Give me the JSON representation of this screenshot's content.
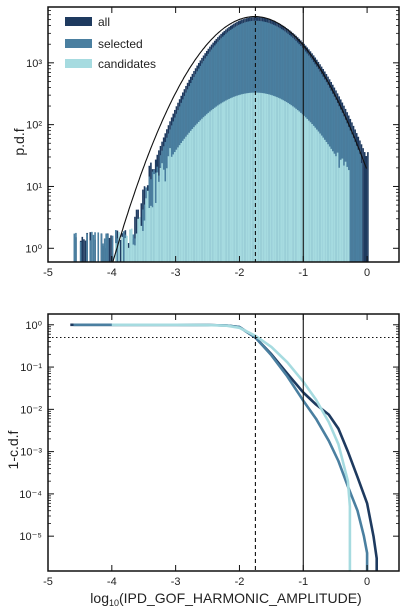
{
  "colors": {
    "all": "#1e3a5f",
    "selected": "#4a7fa0",
    "candidates": "#a6dbe0",
    "fit": "#111111",
    "frame": "#111111"
  },
  "chart_data": [
    {
      "type": "histogram",
      "ylabel": "p.d.f",
      "xlim": [
        -5,
        0.5
      ],
      "ylim": [
        0.6,
        8000
      ],
      "yscale": "log",
      "xticks": [
        "-5",
        "-4",
        "-3",
        "-2",
        "-1",
        "0"
      ],
      "yticks": [
        "10⁰",
        "10¹",
        "10²",
        "10³"
      ],
      "legend": {
        "placement": "top-left",
        "entries": [
          "all",
          "selected",
          "candidates"
        ]
      },
      "vlines": [
        {
          "x": -1.75,
          "style": "dashed"
        },
        {
          "x": -1.0,
          "style": "solid"
        }
      ],
      "series": [
        {
          "name": "all",
          "peak": 5500,
          "center": -1.75,
          "sigma_left": 0.48,
          "sigma_right": 0.54,
          "x_range": [
            -4.65,
            0.0
          ]
        },
        {
          "name": "selected",
          "peak": 4800,
          "center": -1.75,
          "sigma_left": 0.47,
          "sigma_right": 0.52,
          "x_range": [
            -4.6,
            -0.1
          ]
        },
        {
          "name": "candidates",
          "peak": 330,
          "center": -1.75,
          "sigma_left": 0.6,
          "sigma_right": 0.58,
          "x_range": [
            -4.0,
            -0.3
          ]
        }
      ],
      "fit": {
        "peak": 5600,
        "center": -1.76,
        "sigma": 0.52,
        "x_range": [
          -4.05,
          0.0
        ]
      }
    },
    {
      "type": "line",
      "xlabel": "log10(IPD_GOF_HARMONIC_AMPLITUDE)",
      "ylabel": "1-c.d.f",
      "xlim": [
        -5,
        0.5
      ],
      "ylim": [
        1.5e-06,
        1.8
      ],
      "yscale": "log",
      "xticks": [
        "-5",
        "-4",
        "-3",
        "-2",
        "-1",
        "0"
      ],
      "yticks": [
        "10⁰",
        "10⁻¹",
        "10⁻²",
        "10⁻³",
        "10⁻⁴",
        "10⁻⁵"
      ],
      "hline": {
        "y": 0.5,
        "style": "dotted"
      },
      "vlines": [
        {
          "x": -1.75,
          "style": "dashed"
        },
        {
          "x": -1.0,
          "style": "solid"
        }
      ],
      "series": [
        {
          "name": "all",
          "x": [
            -4.65,
            -3.0,
            -2.5,
            -2.2,
            -2.0,
            -1.75,
            -1.5,
            -1.25,
            -1.0,
            -0.8,
            -0.6,
            -0.45,
            -0.3,
            -0.15,
            0.0,
            0.1,
            0.15,
            0.15
          ],
          "y": [
            1.0,
            0.999,
            0.99,
            0.96,
            0.88,
            0.5,
            0.2,
            0.07,
            0.025,
            0.013,
            0.0075,
            0.0035,
            0.001,
            0.00025,
            6e-05,
            1e-05,
            3e-06,
            1.5e-06
          ]
        },
        {
          "name": "selected",
          "x": [
            -4.6,
            -3.0,
            -2.5,
            -2.2,
            -2.0,
            -1.75,
            -1.5,
            -1.25,
            -1.0,
            -0.8,
            -0.6,
            -0.45,
            -0.3,
            -0.15,
            -0.05,
            0.0,
            0.0
          ],
          "y": [
            1.0,
            0.999,
            0.99,
            0.96,
            0.88,
            0.5,
            0.19,
            0.06,
            0.016,
            0.006,
            0.0018,
            0.0006,
            0.00015,
            4e-05,
            1e-05,
            4e-06,
            1.5e-06
          ]
        },
        {
          "name": "candidates",
          "x": [
            -4.0,
            -3.0,
            -2.5,
            -2.2,
            -2.0,
            -1.75,
            -1.5,
            -1.25,
            -1.0,
            -0.8,
            -0.6,
            -0.45,
            -0.3,
            -0.27,
            -0.27
          ],
          "y": [
            1.0,
            0.999,
            0.985,
            0.95,
            0.85,
            0.55,
            0.3,
            0.13,
            0.045,
            0.017,
            0.005,
            0.0015,
            0.0002,
            5e-05,
            1.5e-06
          ]
        }
      ]
    }
  ]
}
